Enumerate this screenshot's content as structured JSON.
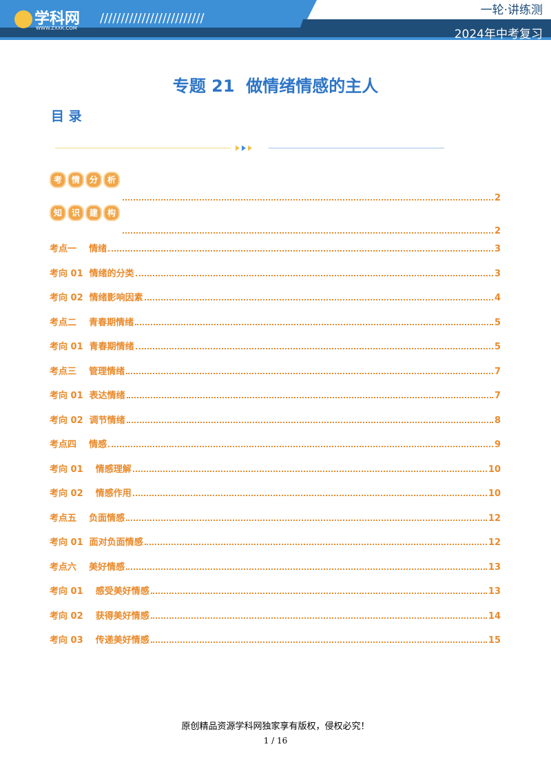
{
  "header": {
    "logo": "学科网",
    "logo_url": "WWW.ZXXK.COM",
    "series": "一轮·讲练测",
    "subtitle": "2024年中考复习"
  },
  "title": "专题 21  做情绪情感的主人",
  "toc_heading": "目 录",
  "toc": {
    "badges": [
      {
        "chars": [
          "考",
          "情",
          "分",
          "析"
        ],
        "page": 2
      },
      {
        "chars": [
          "知",
          "识",
          "建",
          "构"
        ],
        "page": 2
      }
    ],
    "items": [
      {
        "label": "考点一    情绪",
        "page": 3
      },
      {
        "label": "考向 01  情绪的分类",
        "page": 3
      },
      {
        "label": "考向 02  情绪影响因素",
        "page": 4
      },
      {
        "label": "考点二    青春期情绪",
        "page": 5
      },
      {
        "label": "考向 01  青春期情绪",
        "page": 5
      },
      {
        "label": "考点三    管理情绪",
        "page": 7
      },
      {
        "label": "考向 01  表达情绪",
        "page": 7
      },
      {
        "label": "考向 02  调节情绪",
        "page": 8
      },
      {
        "label": "考点四    情感",
        "page": 9
      },
      {
        "label": "考向 01    情感理解",
        "page": 10
      },
      {
        "label": "考向 02    情感作用",
        "page": 10
      },
      {
        "label": "考点五    负面情感",
        "page": 12
      },
      {
        "label": "考向 01  面对负面情感",
        "page": 12
      },
      {
        "label": "考点六    美好情感",
        "page": 13
      },
      {
        "label": "考向 01    感受美好情感",
        "page": 13
      },
      {
        "label": "考向 02    获得美好情感",
        "page": 14
      },
      {
        "label": "考向 03    传递美好情感",
        "page": 15
      }
    ]
  },
  "footer": {
    "notice": "原创精品资源学科网独家享有版权，侵权必究！",
    "page_number": "1 / 16"
  }
}
